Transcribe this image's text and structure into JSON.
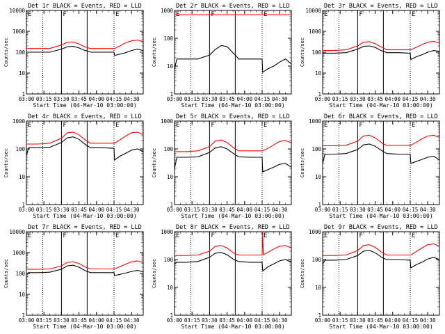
{
  "figure": {
    "colors": {
      "events": "#000000",
      "lld": "#ff0000",
      "axes": "#000000",
      "background": "#ffffff"
    }
  },
  "chart_data": [
    {
      "type": "line",
      "title": "Det 1r BLACK = Events, RED = LLD",
      "xlabel": "Start Time (04-Mar-10 03:00:00)",
      "ylabel": "Counts/sec",
      "yscale": "log",
      "ylim": [
        1,
        10000
      ],
      "yticks": [
        "1",
        "10",
        "100",
        "1000",
        "10000"
      ],
      "xlim": [
        "03:00",
        "04:40"
      ],
      "xticks": [
        "03:00",
        "03:15",
        "03:30",
        "03:45",
        "04:00",
        "04:15",
        "04:30"
      ],
      "vlines": {
        "solid": [
          "03:30",
          "03:52"
        ],
        "dotted": [
          "03:14",
          "04:15"
        ]
      },
      "markers": [
        {
          "label": "E",
          "at": "03:00"
        },
        {
          "label": "F",
          "at": "03:30"
        },
        {
          "label": "E",
          "at": "04:15"
        }
      ],
      "x_minutes": [
        0,
        2,
        10,
        20,
        30,
        35,
        40,
        45,
        50,
        52,
        55,
        65,
        75,
        75.5,
        80,
        85,
        90,
        95,
        100
      ],
      "series": [
        {
          "name": "Events",
          "values": [
            100,
            100,
            100,
            100,
            140,
            180,
            190,
            160,
            120,
            115,
            100,
            100,
            100,
            70,
            80,
            95,
            120,
            140,
            120
          ]
        },
        {
          "name": "LLD",
          "values": [
            150,
            150,
            150,
            150,
            220,
            300,
            310,
            250,
            180,
            165,
            150,
            150,
            150,
            150,
            200,
            280,
            350,
            380,
            320
          ]
        }
      ]
    },
    {
      "type": "line",
      "title": "Det 2r BLACK = Events, RED = LLD",
      "xlabel": "Start Time (04-Mar-10 03:00:00)",
      "ylabel": "Counts/sec",
      "yscale": "log",
      "ylim": [
        1,
        1000
      ],
      "yticks": [
        "1",
        "10",
        "100",
        "1000"
      ],
      "xlim": [
        "03:00",
        "04:40"
      ],
      "xticks": [
        "03:00",
        "03:15",
        "03:30",
        "03:45",
        "04:00",
        "04:15",
        "04:30"
      ],
      "vlines": {
        "solid": [
          "03:30",
          "03:52"
        ],
        "dotted": [
          "03:14",
          "04:15"
        ]
      },
      "markers": [
        {
          "label": "E",
          "at": "03:00"
        },
        {
          "label": "F",
          "at": "03:30"
        },
        {
          "label": "E",
          "at": "04:15"
        }
      ],
      "x_minutes": [
        0,
        2,
        10,
        20,
        30,
        35,
        40,
        45,
        50,
        52,
        55,
        65,
        75,
        75.5,
        80,
        85,
        90,
        95,
        100
      ],
      "series": [
        {
          "name": "Events",
          "values": [
            8,
            18,
            18,
            18,
            25,
            40,
            55,
            50,
            30,
            25,
            18,
            18,
            18,
            6,
            8,
            10,
            14,
            18,
            12
          ]
        },
        {
          "name": "LLD",
          "values": [
            700,
            700,
            700,
            700,
            700,
            700,
            700,
            700,
            700,
            700,
            700,
            700,
            700,
            700,
            700,
            700,
            700,
            700,
            700
          ]
        }
      ]
    },
    {
      "type": "line",
      "title": "Det 3r BLACK = Events, RED = LLD",
      "xlabel": "Start Time (04-Mar-10 03:00:00)",
      "ylabel": "Counts/sec",
      "yscale": "log",
      "ylim": [
        1,
        10000
      ],
      "yticks": [
        "1",
        "10",
        "100",
        "1000",
        "10000"
      ],
      "xlim": [
        "03:00",
        "04:40"
      ],
      "xticks": [
        "03:00",
        "03:15",
        "03:30",
        "03:45",
        "04:00",
        "04:15",
        "04:30"
      ],
      "vlines": {
        "solid": [
          "03:30",
          "03:52"
        ],
        "dotted": [
          "03:14",
          "04:15"
        ]
      },
      "markers": [
        {
          "label": "E",
          "at": "03:00"
        },
        {
          "label": "F",
          "at": "03:30"
        },
        {
          "label": "E",
          "at": "04:15"
        }
      ],
      "x_minutes": [
        0,
        2,
        10,
        20,
        30,
        35,
        40,
        45,
        50,
        52,
        55,
        65,
        75,
        75.5,
        80,
        85,
        90,
        95,
        100
      ],
      "series": [
        {
          "name": "Events",
          "values": [
            90,
            90,
            90,
            95,
            140,
            190,
            200,
            170,
            120,
            110,
            95,
            95,
            90,
            45,
            60,
            75,
            100,
            120,
            110
          ]
        },
        {
          "name": "LLD",
          "values": [
            120,
            120,
            120,
            130,
            200,
            300,
            320,
            260,
            180,
            160,
            130,
            130,
            130,
            130,
            170,
            230,
            300,
            330,
            280
          ]
        }
      ]
    },
    {
      "type": "line",
      "title": "Det 4r BLACK = Events, RED = LLD",
      "xlabel": "Start Time (04-Mar-10 03:00:00)",
      "ylabel": "Counts/sec",
      "yscale": "log",
      "ylim": [
        1,
        1000
      ],
      "yticks": [
        "1",
        "10",
        "100",
        "1000"
      ],
      "xlim": [
        "03:00",
        "04:40"
      ],
      "xticks": [
        "03:00",
        "03:15",
        "03:30",
        "03:45",
        "04:00",
        "04:15",
        "04:30"
      ],
      "vlines": {
        "solid": [
          "03:30",
          "03:52"
        ],
        "dotted": [
          "03:14",
          "04:15"
        ]
      },
      "markers": [
        {
          "label": "E",
          "at": "03:00"
        },
        {
          "label": "F",
          "at": "03:30"
        },
        {
          "label": "E",
          "at": "04:15"
        }
      ],
      "x_minutes": [
        0,
        2,
        10,
        20,
        30,
        35,
        40,
        45,
        50,
        52,
        55,
        65,
        75,
        75.5,
        80,
        85,
        90,
        95,
        100
      ],
      "series": [
        {
          "name": "Events",
          "values": [
            60,
            110,
            110,
            115,
            170,
            250,
            270,
            220,
            150,
            130,
            110,
            110,
            105,
            40,
            55,
            70,
            90,
            100,
            80
          ]
        },
        {
          "name": "LLD",
          "values": [
            150,
            150,
            150,
            160,
            240,
            380,
            400,
            320,
            220,
            190,
            160,
            160,
            160,
            160,
            210,
            290,
            380,
            400,
            330
          ]
        }
      ]
    },
    {
      "type": "line",
      "title": "Det 5r BLACK = Events, RED = LLD",
      "xlabel": "Start Time (04-Mar-10 03:00:00)",
      "ylabel": "Counts/sec",
      "yscale": "log",
      "ylim": [
        1,
        1000
      ],
      "yticks": [
        "1",
        "10",
        "100",
        "1000"
      ],
      "xlim": [
        "03:00",
        "04:40"
      ],
      "xticks": [
        "03:00",
        "03:15",
        "03:30",
        "03:45",
        "04:00",
        "04:15",
        "04:30"
      ],
      "vlines": {
        "solid": [
          "03:30",
          "03:52"
        ],
        "dotted": [
          "03:14",
          "04:15"
        ]
      },
      "markers": [
        {
          "label": "E",
          "at": "03:00"
        },
        {
          "label": "F",
          "at": "03:30"
        },
        {
          "label": "E",
          "at": "04:15"
        }
      ],
      "x_minutes": [
        0,
        2,
        10,
        20,
        30,
        35,
        40,
        45,
        50,
        52,
        55,
        65,
        75,
        75.5,
        80,
        85,
        90,
        95,
        100
      ],
      "series": [
        {
          "name": "Events",
          "values": [
            20,
            50,
            50,
            52,
            75,
            110,
            120,
            100,
            70,
            62,
            52,
            50,
            50,
            15,
            18,
            22,
            28,
            30,
            22
          ]
        },
        {
          "name": "LLD",
          "values": [
            80,
            80,
            80,
            85,
            120,
            190,
            210,
            170,
            115,
            100,
            85,
            85,
            85,
            85,
            105,
            140,
            185,
            200,
            165
          ]
        }
      ]
    },
    {
      "type": "line",
      "title": "Det 6r BLACK = Events, RED = LLD",
      "xlabel": "Start Time (04-Mar-10 03:00:00)",
      "ylabel": "Counts/sec",
      "yscale": "log",
      "ylim": [
        1,
        1000
      ],
      "yticks": [
        "1",
        "10",
        "100",
        "1000"
      ],
      "xlim": [
        "03:00",
        "04:40"
      ],
      "xticks": [
        "03:00",
        "03:15",
        "03:30",
        "03:45",
        "04:00",
        "04:15",
        "04:30"
      ],
      "vlines": {
        "solid": [
          "03:30",
          "03:52"
        ],
        "dotted": [
          "03:14",
          "04:15"
        ]
      },
      "markers": [
        {
          "label": "E",
          "at": "03:00"
        },
        {
          "label": "F",
          "at": "03:30"
        },
        {
          "label": "E",
          "at": "04:15"
        }
      ],
      "x_minutes": [
        0,
        2,
        10,
        20,
        30,
        35,
        40,
        45,
        50,
        52,
        55,
        65,
        75,
        75.5,
        80,
        85,
        90,
        95,
        100
      ],
      "series": [
        {
          "name": "Events",
          "values": [
            30,
            65,
            65,
            68,
            95,
            140,
            150,
            125,
            90,
            80,
            68,
            65,
            65,
            30,
            35,
            42,
            50,
            55,
            40
          ]
        },
        {
          "name": "LLD",
          "values": [
            130,
            130,
            130,
            135,
            190,
            290,
            310,
            250,
            175,
            150,
            135,
            135,
            135,
            135,
            170,
            230,
            290,
            310,
            260
          ]
        }
      ]
    },
    {
      "type": "line",
      "title": "Det 7r BLACK = Events, RED = LLD",
      "xlabel": "Start Time (04-Mar-10 03:00:00)",
      "ylabel": "Counts/sec",
      "yscale": "log",
      "ylim": [
        1,
        10000
      ],
      "yticks": [
        "1",
        "10",
        "100",
        "1000",
        "10000"
      ],
      "xlim": [
        "03:00",
        "04:40"
      ],
      "xticks": [
        "03:00",
        "03:15",
        "03:30",
        "03:45",
        "04:00",
        "04:15",
        "04:30"
      ],
      "vlines": {
        "solid": [
          "03:30",
          "03:52"
        ],
        "dotted": [
          "03:14",
          "04:15"
        ]
      },
      "markers": [
        {
          "label": "E",
          "at": "03:00"
        },
        {
          "label": "F",
          "at": "03:30"
        },
        {
          "label": "E",
          "at": "04:15"
        }
      ],
      "x_minutes": [
        0,
        2,
        10,
        20,
        30,
        35,
        40,
        45,
        50,
        52,
        55,
        65,
        75,
        75.5,
        80,
        85,
        90,
        95,
        100
      ],
      "series": [
        {
          "name": "Events",
          "values": [
            100,
            110,
            110,
            115,
            160,
            230,
            250,
            200,
            140,
            125,
            110,
            110,
            110,
            80,
            90,
            105,
            125,
            140,
            120
          ]
        },
        {
          "name": "LLD",
          "values": [
            160,
            160,
            160,
            165,
            230,
            340,
            370,
            300,
            210,
            185,
            165,
            165,
            165,
            165,
            210,
            280,
            360,
            400,
            330
          ]
        }
      ]
    },
    {
      "type": "line",
      "title": "Det 8r BLACK = Events, RED = LLD",
      "xlabel": "Start Time (04-Mar-10 03:00:00)",
      "ylabel": "Counts/sec",
      "yscale": "log",
      "ylim": [
        1,
        1000
      ],
      "yticks": [
        "1",
        "10",
        "100",
        "1000"
      ],
      "xlim": [
        "03:00",
        "04:40"
      ],
      "xticks": [
        "03:00",
        "03:15",
        "03:30",
        "03:45",
        "04:00",
        "04:15",
        "04:30"
      ],
      "vlines": {
        "solid": [
          "03:30",
          "03:52"
        ],
        "dotted": [
          "03:14",
          "04:15"
        ]
      },
      "markers": [
        {
          "label": "E",
          "at": "03:00"
        },
        {
          "label": "F",
          "at": "03:30"
        },
        {
          "label": "E",
          "at": "04:15"
        }
      ],
      "x_minutes": [
        0,
        2,
        10,
        20,
        30,
        35,
        40,
        45,
        50,
        52,
        55,
        65,
        75,
        75.5,
        76,
        80,
        85,
        90,
        95,
        100
      ],
      "series": [
        {
          "name": "Events",
          "values": [
            70,
            80,
            80,
            85,
            120,
            170,
            180,
            150,
            105,
            95,
            85,
            80,
            80,
            40,
            40,
            55,
            70,
            90,
            100,
            80
          ]
        },
        {
          "name": "LLD",
          "values": [
            130,
            140,
            140,
            145,
            200,
            300,
            320,
            260,
            180,
            160,
            145,
            145,
            145,
            1000,
            150,
            180,
            240,
            300,
            320,
            260
          ]
        }
      ]
    },
    {
      "type": "line",
      "title": "Det 9r BLACK = Events, RED = LLD",
      "xlabel": "Start Time (04-Mar-10 03:00:00)",
      "ylabel": "Counts/sec",
      "yscale": "log",
      "ylim": [
        1,
        1000
      ],
      "yticks": [
        "1",
        "10",
        "100",
        "1000"
      ],
      "xlim": [
        "03:00",
        "04:40"
      ],
      "xticks": [
        "03:00",
        "03:15",
        "03:30",
        "03:45",
        "04:00",
        "04:15",
        "04:30"
      ],
      "vlines": {
        "solid": [
          "03:30",
          "03:52"
        ],
        "dotted": [
          "03:14",
          "04:15"
        ]
      },
      "markers": [
        {
          "label": "E",
          "at": "03:00"
        },
        {
          "label": "F",
          "at": "03:30"
        },
        {
          "label": "E",
          "at": "04:15"
        }
      ],
      "x_minutes": [
        0,
        2,
        10,
        20,
        30,
        35,
        40,
        45,
        50,
        52,
        55,
        65,
        75,
        75.5,
        80,
        85,
        90,
        95,
        100
      ],
      "series": [
        {
          "name": "Events",
          "values": [
            70,
            95,
            95,
            100,
            140,
            200,
            215,
            175,
            125,
            110,
            100,
            100,
            95,
            50,
            65,
            80,
            105,
            120,
            100
          ]
        },
        {
          "name": "LLD",
          "values": [
            140,
            140,
            140,
            145,
            210,
            320,
            340,
            275,
            190,
            170,
            145,
            145,
            145,
            145,
            190,
            260,
            340,
            370,
            300
          ]
        }
      ]
    }
  ]
}
